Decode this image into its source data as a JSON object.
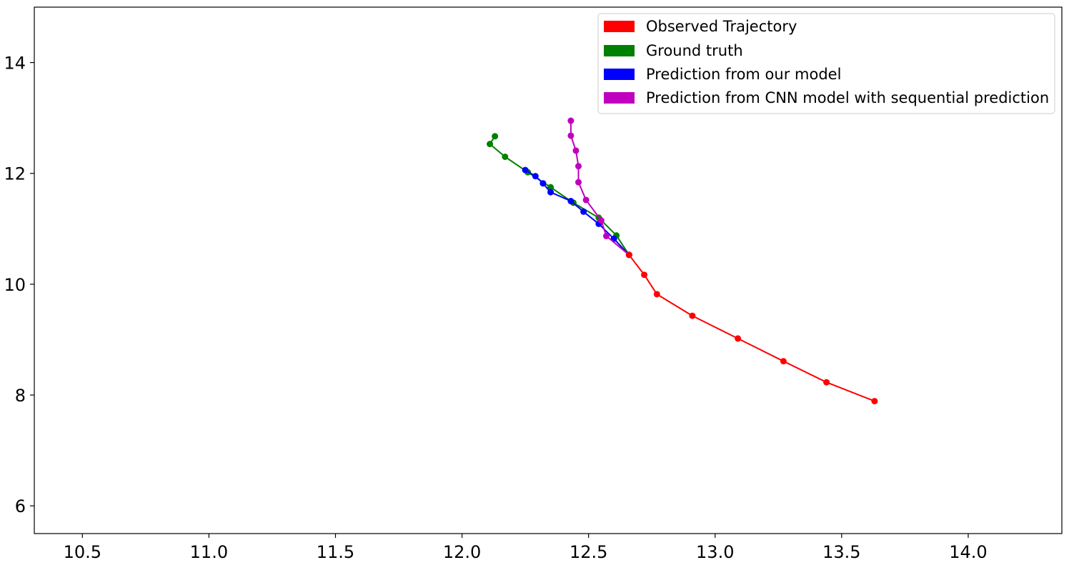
{
  "chart_data": {
    "type": "line",
    "title": "",
    "xlabel": "",
    "ylabel": "",
    "xlim": [
      10.31,
      14.37
    ],
    "ylim": [
      5.5,
      15.0
    ],
    "x_ticks": [
      10.5,
      11.0,
      11.5,
      12.0,
      12.5,
      13.0,
      13.5,
      14.0
    ],
    "y_ticks": [
      6,
      8,
      10,
      12,
      14
    ],
    "x_tick_labels": [
      "10.5",
      "11.0",
      "11.5",
      "12.0",
      "12.5",
      "13.0",
      "13.5",
      "14.0"
    ],
    "y_tick_labels": [
      "6",
      "8",
      "10",
      "12",
      "14"
    ],
    "grid": false,
    "legend_position": "top-right",
    "series": [
      {
        "name": "Observed Trajectory",
        "color": "#ff0000",
        "x": [
          13.63,
          13.44,
          13.27,
          13.09,
          12.91,
          12.77,
          12.72,
          12.66
        ],
        "y": [
          7.89,
          8.23,
          8.61,
          9.02,
          9.43,
          9.82,
          10.17,
          10.53
        ]
      },
      {
        "name": "Ground truth",
        "color": "#008000",
        "x": [
          12.66,
          12.61,
          12.54,
          12.44,
          12.35,
          12.26,
          12.17,
          12.11,
          12.13
        ],
        "y": [
          10.53,
          10.88,
          11.2,
          11.47,
          11.75,
          12.02,
          12.3,
          12.53,
          12.67
        ]
      },
      {
        "name": "Prediction from our model",
        "color": "#0000ff",
        "x": [
          12.66,
          12.6,
          12.54,
          12.48,
          12.43,
          12.35,
          12.32,
          12.29,
          12.25
        ],
        "y": [
          10.53,
          10.82,
          11.09,
          11.31,
          11.5,
          11.66,
          11.82,
          11.95,
          12.06
        ]
      },
      {
        "name": "Prediction from CNN model with sequential prediction",
        "color": "#bf00bf",
        "x": [
          12.66,
          12.57,
          12.55,
          12.49,
          12.46,
          12.46,
          12.45,
          12.43,
          12.43
        ],
        "y": [
          10.53,
          10.87,
          11.15,
          11.52,
          11.84,
          12.13,
          12.41,
          12.68,
          12.95
        ]
      }
    ]
  }
}
